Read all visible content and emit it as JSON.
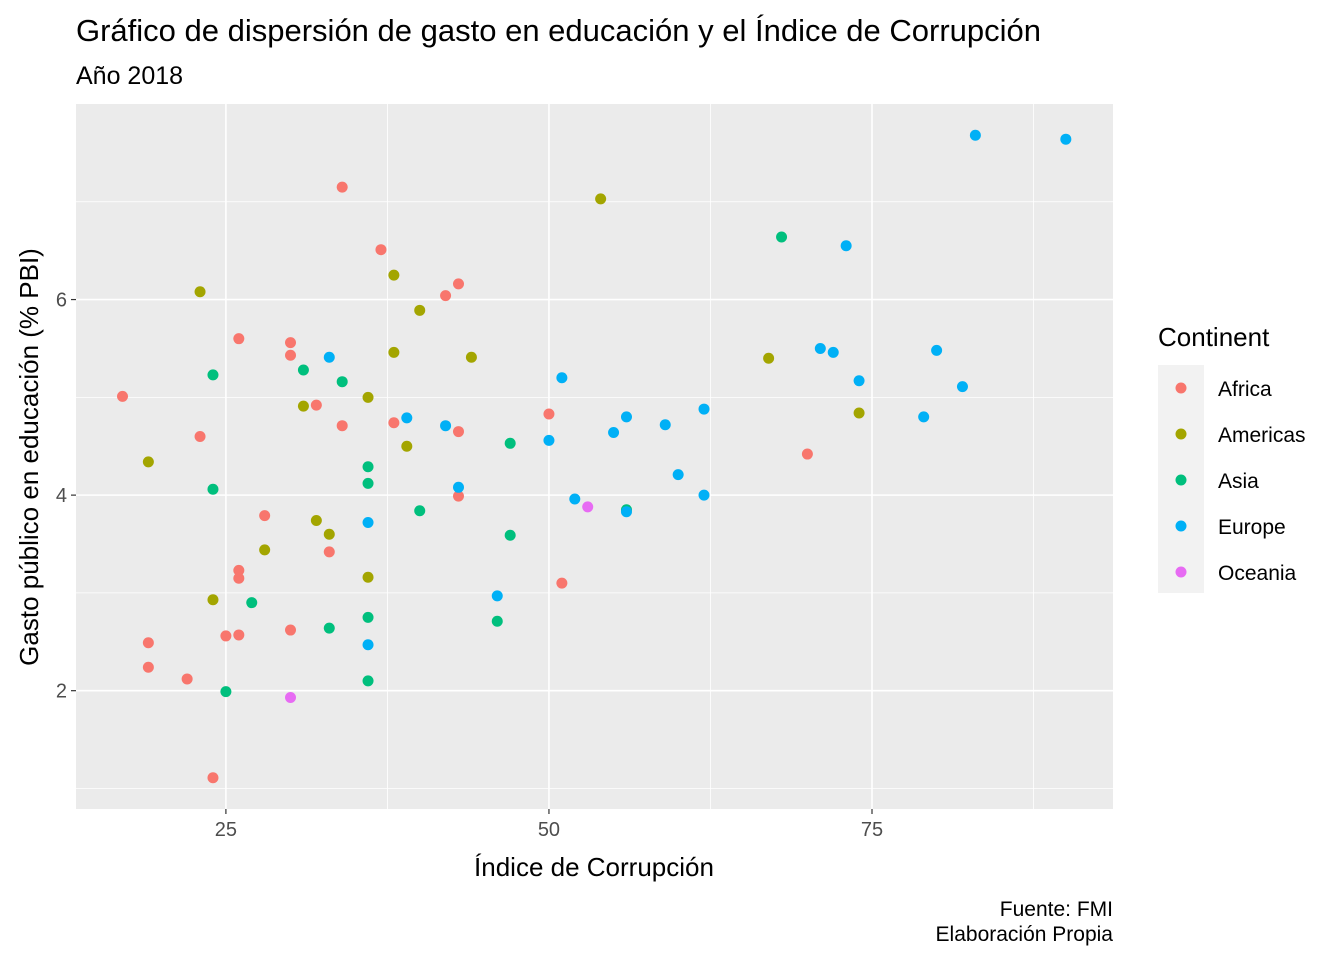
{
  "chart_data": {
    "type": "scatter",
    "title": "Gráfico de dispersión de gasto en educación y el Índice de Corrupción",
    "subtitle": "Año 2018",
    "xlabel": "Índice de Corrupción",
    "ylabel": "Gasto público en educación (% PBI)",
    "caption": [
      "Fuente: FMI",
      "Elaboración Propia"
    ],
    "xlim": [
      13.4,
      93.65
    ],
    "ylim": [
      0.79,
      8.0
    ],
    "xticks": [
      25,
      50,
      75
    ],
    "yticks": [
      2,
      4,
      6
    ],
    "xminor": [
      37.5,
      62.5,
      87.5
    ],
    "yminor": [
      1,
      3,
      5,
      7
    ],
    "grid": true,
    "legend": {
      "title": "Continent",
      "placement": "right"
    },
    "series": [
      {
        "name": "Africa",
        "color": "#F8766D",
        "points": [
          [
            17,
            5.01
          ],
          [
            34,
            7.15
          ],
          [
            37,
            6.51
          ],
          [
            43,
            6.16
          ],
          [
            42,
            6.04
          ],
          [
            26,
            5.6
          ],
          [
            30,
            5.56
          ],
          [
            30,
            5.43
          ],
          [
            32,
            4.92
          ],
          [
            23,
            4.6
          ],
          [
            34,
            4.71
          ],
          [
            38,
            4.74
          ],
          [
            43,
            4.65
          ],
          [
            50,
            4.83
          ],
          [
            43,
            3.99
          ],
          [
            28,
            3.79
          ],
          [
            33,
            3.42
          ],
          [
            26,
            3.23
          ],
          [
            26,
            3.15
          ],
          [
            51,
            3.1
          ],
          [
            25,
            2.56
          ],
          [
            26,
            2.57
          ],
          [
            30,
            2.62
          ],
          [
            19,
            2.49
          ],
          [
            19,
            2.24
          ],
          [
            22,
            2.12
          ],
          [
            24,
            1.11
          ],
          [
            70,
            4.42
          ]
        ]
      },
      {
        "name": "Americas",
        "color": "#A3A500",
        "points": [
          [
            23,
            6.08
          ],
          [
            54,
            7.03
          ],
          [
            38,
            6.25
          ],
          [
            40,
            5.89
          ],
          [
            38,
            5.46
          ],
          [
            44,
            5.41
          ],
          [
            31,
            4.91
          ],
          [
            36,
            5.0
          ],
          [
            19,
            4.34
          ],
          [
            39,
            4.5
          ],
          [
            32,
            3.74
          ],
          [
            33,
            3.6
          ],
          [
            28,
            3.44
          ],
          [
            36,
            3.16
          ],
          [
            24,
            2.93
          ],
          [
            67,
            5.4
          ],
          [
            74,
            4.84
          ]
        ]
      },
      {
        "name": "Asia",
        "color": "#00BF7D",
        "points": [
          [
            68,
            6.64
          ],
          [
            24,
            5.23
          ],
          [
            31,
            5.28
          ],
          [
            34,
            5.16
          ],
          [
            24,
            4.06
          ],
          [
            36,
            4.29
          ],
          [
            36,
            4.12
          ],
          [
            40,
            3.84
          ],
          [
            47,
            4.53
          ],
          [
            47,
            3.59
          ],
          [
            27,
            2.9
          ],
          [
            33,
            2.64
          ],
          [
            36,
            2.75
          ],
          [
            46,
            2.71
          ],
          [
            36,
            2.1
          ],
          [
            25,
            1.99
          ],
          [
            56,
            3.85
          ]
        ]
      },
      {
        "name": "Europe",
        "color": "#00B0F6",
        "points": [
          [
            83,
            7.68
          ],
          [
            90,
            7.64
          ],
          [
            73,
            6.55
          ],
          [
            71,
            5.5
          ],
          [
            72,
            5.46
          ],
          [
            80,
            5.48
          ],
          [
            74,
            5.17
          ],
          [
            82,
            5.11
          ],
          [
            79,
            4.8
          ],
          [
            33,
            5.41
          ],
          [
            51,
            5.2
          ],
          [
            39,
            4.79
          ],
          [
            42,
            4.71
          ],
          [
            43,
            4.08
          ],
          [
            50,
            4.56
          ],
          [
            55,
            4.64
          ],
          [
            56,
            4.8
          ],
          [
            59,
            4.72
          ],
          [
            62,
            4.88
          ],
          [
            60,
            4.21
          ],
          [
            62,
            4.0
          ],
          [
            52,
            3.96
          ],
          [
            56,
            3.83
          ],
          [
            36,
            3.72
          ],
          [
            46,
            2.97
          ],
          [
            36,
            2.47
          ]
        ]
      },
      {
        "name": "Oceania",
        "color": "#E76BF3",
        "points": [
          [
            53,
            3.88
          ],
          [
            30,
            1.93
          ]
        ]
      }
    ]
  }
}
